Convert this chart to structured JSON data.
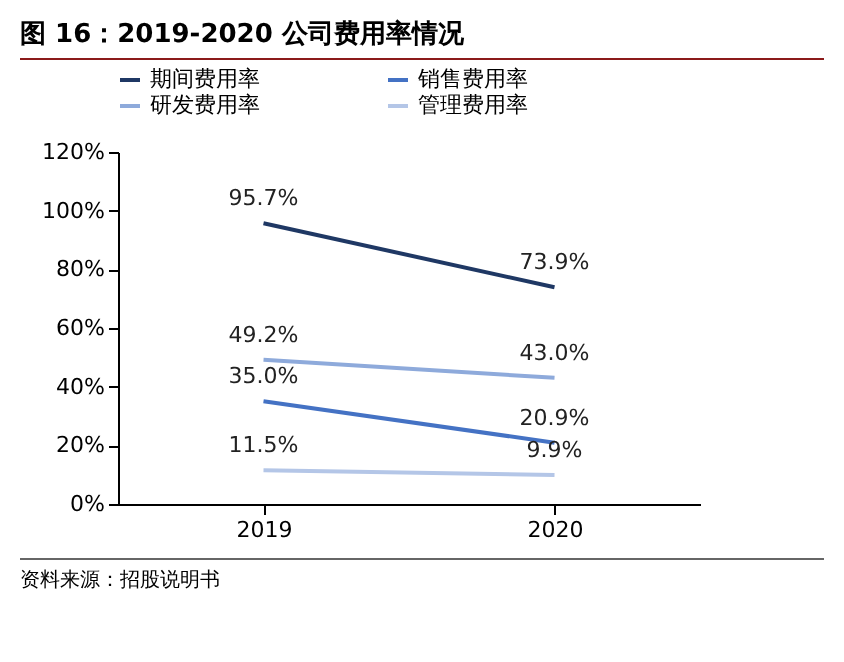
{
  "chart_data": {
    "type": "line",
    "title": "图 16：2019-2020 公司费用率情况",
    "categories": [
      "2019",
      "2020"
    ],
    "series": [
      {
        "name": "期间费用率",
        "color": "#1f3864",
        "values": [
          95.7,
          73.9
        ],
        "value_labels": [
          "95.7%",
          "73.9%"
        ]
      },
      {
        "name": "销售费用率",
        "color": "#4472c4",
        "values": [
          35.0,
          20.9
        ],
        "value_labels": [
          "35.0%",
          "20.9%"
        ]
      },
      {
        "name": "研发费用率",
        "color": "#8eaadb",
        "values": [
          49.2,
          43.0
        ],
        "value_labels": [
          "49.2%",
          "43.0%"
        ]
      },
      {
        "name": "管理费用率",
        "color": "#b4c6e7",
        "values": [
          11.5,
          9.9
        ],
        "value_labels": [
          "11.5%",
          "9.9%"
        ]
      }
    ],
    "ylim": [
      0,
      120
    ],
    "yticks": [
      {
        "value": 0,
        "label": "0%"
      },
      {
        "value": 20,
        "label": "20%"
      },
      {
        "value": 40,
        "label": "40%"
      },
      {
        "value": 60,
        "label": "60%"
      },
      {
        "value": 80,
        "label": "80%"
      },
      {
        "value": 100,
        "label": "100%"
      },
      {
        "value": 120,
        "label": "120%"
      }
    ],
    "grid": false,
    "legend": "top",
    "marker": "none",
    "line_style": "solid",
    "annotations": [
      "资料来源：招股说明书"
    ]
  }
}
